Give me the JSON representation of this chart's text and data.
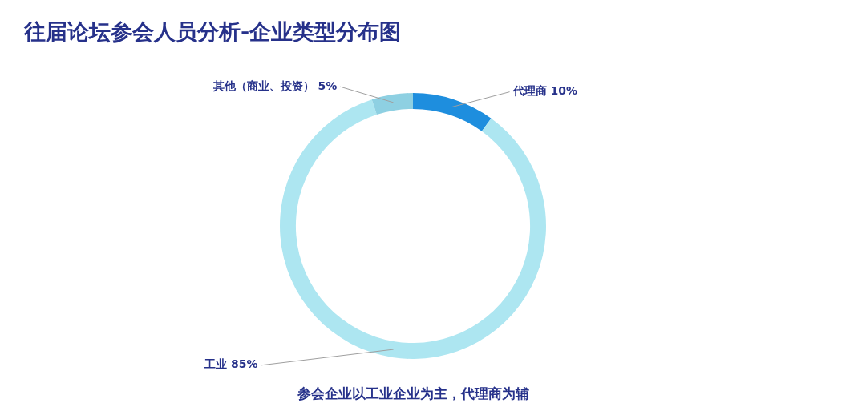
{
  "chart_data": {
    "type": "donut",
    "title": "往届论坛参会人员分析-企业类型分布图",
    "categories": [
      "代理商",
      "工业",
      "其他（商业、投资）"
    ],
    "values": [
      10,
      85,
      5
    ],
    "colors": [
      "#1e8ede",
      "#ade6f1",
      "#8ed0e2"
    ],
    "value_labels": [
      "10%",
      "85%",
      "5%"
    ],
    "legend": false,
    "annotations": [
      "参会企业以工业企业为主，代理商为辅"
    ]
  }
}
